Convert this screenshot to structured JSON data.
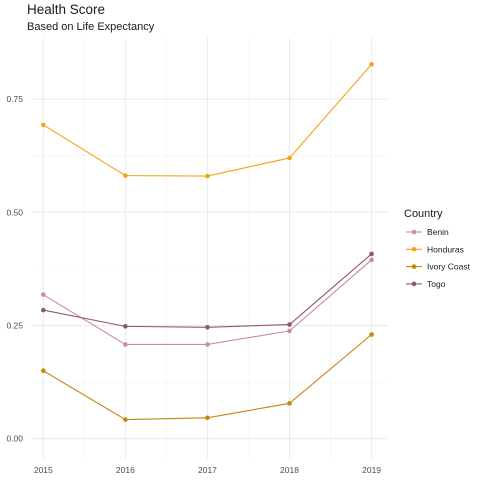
{
  "chart_data": {
    "type": "line",
    "title": "Health Score",
    "subtitle": "Based on Life Expectancy",
    "xlabel": "",
    "ylabel": "",
    "x": [
      2015,
      2016,
      2017,
      2018,
      2019
    ],
    "x_tick_labels": [
      "2015",
      "2016",
      "2017",
      "2018",
      "2019"
    ],
    "y_ticks": [
      0.0,
      0.25,
      0.5,
      0.75
    ],
    "y_tick_labels": [
      "0.00",
      "0.25",
      "0.50",
      "0.75"
    ],
    "ylim": [
      -0.045,
      0.885
    ],
    "xlim": [
      2014.85,
      2019.2
    ],
    "grid": true,
    "legend": {
      "title": "Country",
      "placement": "right"
    },
    "series": [
      {
        "name": "Benin",
        "color": "#c88c9c",
        "values": [
          0.318,
          0.208,
          0.208,
          0.238,
          0.395
        ]
      },
      {
        "name": "Honduras",
        "color": "#f5a316",
        "values": [
          0.693,
          0.581,
          0.58,
          0.62,
          0.827
        ]
      },
      {
        "name": "Ivory Coast",
        "color": "#c8860a",
        "values": [
          0.15,
          0.042,
          0.046,
          0.078,
          0.23
        ]
      },
      {
        "name": "Togo",
        "color": "#8a5a6e",
        "values": [
          0.284,
          0.248,
          0.246,
          0.252,
          0.408
        ]
      }
    ]
  }
}
